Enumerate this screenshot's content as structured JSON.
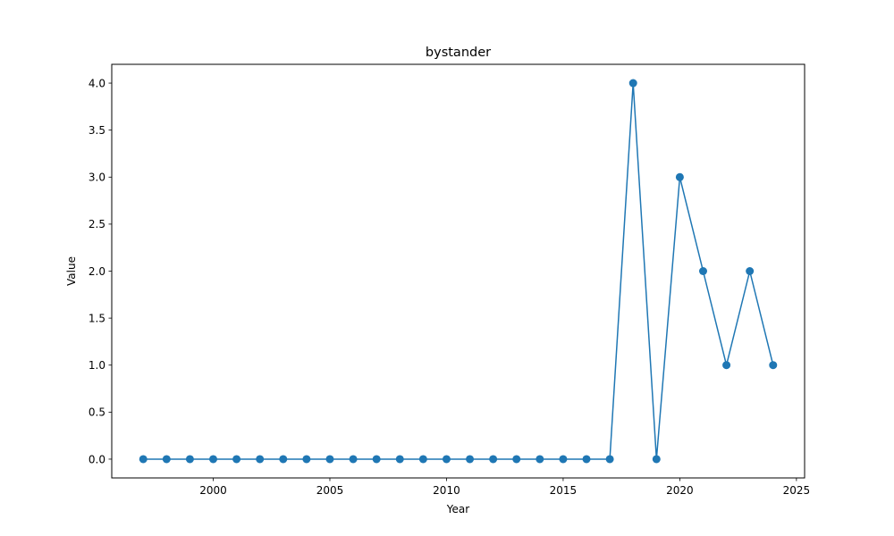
{
  "chart_data": {
    "type": "line",
    "title": "bystander",
    "xlabel": "Year",
    "ylabel": "Value",
    "xlim": [
      1995.65,
      2025.35
    ],
    "ylim": [
      -0.2,
      4.2
    ],
    "xticks": [
      2000,
      2005,
      2010,
      2015,
      2020,
      2025
    ],
    "yticks": [
      0.0,
      0.5,
      1.0,
      1.5,
      2.0,
      2.5,
      3.0,
      3.5,
      4.0
    ],
    "grid": false,
    "color": "#1f77b4",
    "series": [
      {
        "x": [
          1997,
          1998,
          1999,
          2000,
          2001,
          2002,
          2003,
          2004,
          2005,
          2006,
          2007,
          2008,
          2009,
          2010,
          2011,
          2012,
          2013,
          2014,
          2015,
          2016,
          2017,
          2018,
          2019,
          2020,
          2021,
          2022,
          2023,
          2024
        ],
        "values": [
          0,
          0,
          0,
          0,
          0,
          0,
          0,
          0,
          0,
          0,
          0,
          0,
          0,
          0,
          0,
          0,
          0,
          0,
          0,
          0,
          0,
          4,
          0,
          3,
          2,
          1,
          2,
          1
        ]
      }
    ]
  }
}
